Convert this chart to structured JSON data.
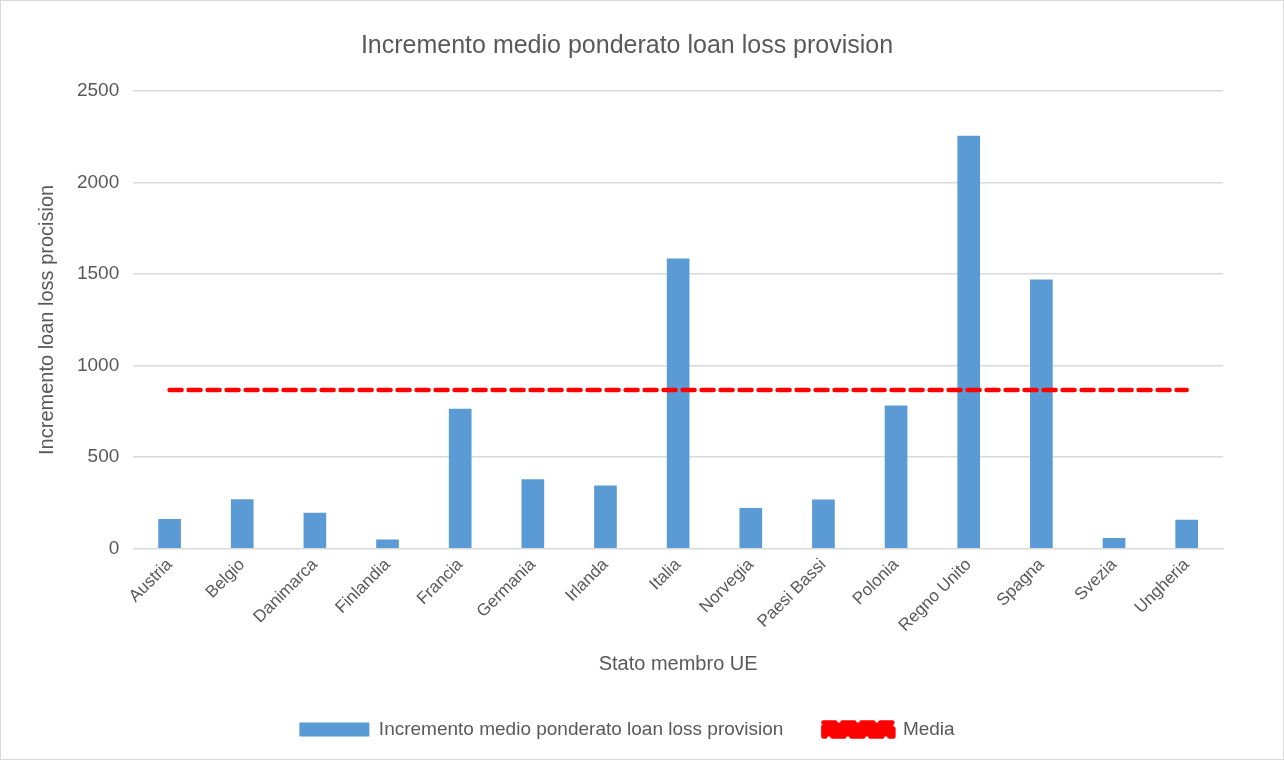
{
  "chart_data": {
    "type": "bar",
    "title": "Incremento medio ponderato loan loss provision",
    "xlabel": "Stato membro UE",
    "ylabel": "Incremento loan loss procision",
    "categories": [
      "Austria",
      "Belgio",
      "Danimarca",
      "Finlandia",
      "Francia",
      "Germania",
      "Irlanda",
      "Italia",
      "Norvegia",
      "Paesi Bassi",
      "Polonia",
      "Regno Unito",
      "Spagna",
      "Svezia",
      "Ungheria"
    ],
    "series": [
      {
        "name": "Incremento medio ponderato loan loss provision",
        "color": "#5b9bd5",
        "values": [
          162,
          271,
          197,
          50,
          765,
          380,
          345,
          1585,
          223,
          269,
          782,
          2255,
          1471,
          59,
          159
        ]
      },
      {
        "name": "Media",
        "type": "line",
        "color": "#ff0000",
        "line_style": "dashed",
        "marker": "none",
        "values": [
          867,
          867,
          867,
          867,
          867,
          867,
          867,
          867,
          867,
          867,
          867,
          867,
          867,
          867,
          867
        ]
      }
    ],
    "ylim": [
      0,
      2500
    ],
    "yticks": [
      0,
      500,
      1000,
      1500,
      2000,
      2500
    ],
    "grid": "y",
    "legend": "bottom"
  }
}
